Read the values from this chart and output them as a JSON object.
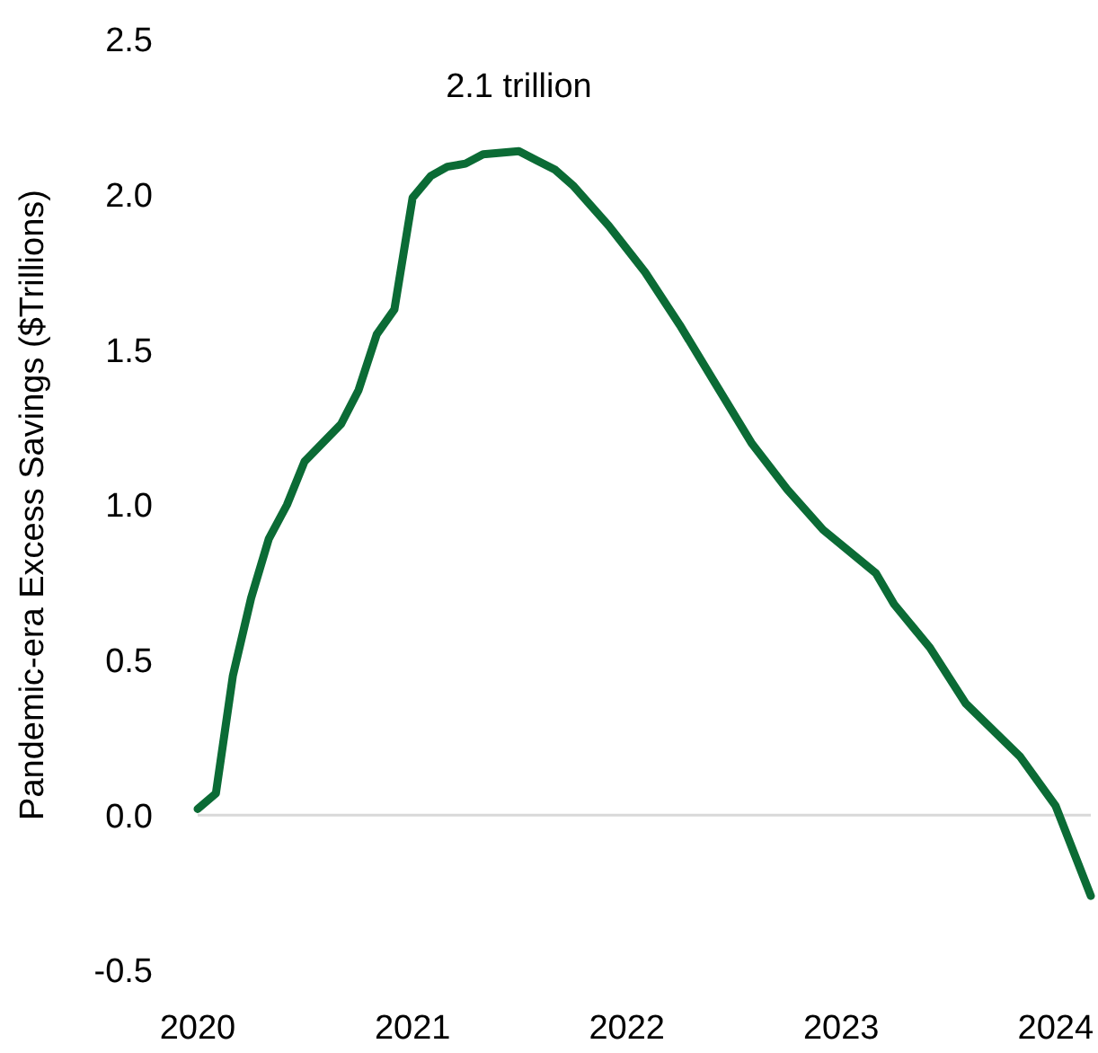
{
  "chart_data": {
    "type": "line",
    "ylabel": "Pandemic-era Excess Savings ($Trillions)",
    "x": [
      "2020-01",
      "2020-02",
      "2020-03",
      "2020-04",
      "2020-05",
      "2020-06",
      "2020-07",
      "2020-09",
      "2020-10",
      "2020-11",
      "2020-12",
      "2021-01",
      "2021-02",
      "2021-03",
      "2021-04",
      "2021-05",
      "2021-07",
      "2021-08",
      "2021-09",
      "2021-10",
      "2021-12",
      "2022-02",
      "2022-04",
      "2022-06",
      "2022-08",
      "2022-10",
      "2022-12",
      "2023-03",
      "2023-04",
      "2023-06",
      "2023-08",
      "2023-11",
      "2024-01",
      "2024-03"
    ],
    "series": [
      {
        "color": "#0b6b35",
        "values": [
          0.02,
          0.07,
          0.45,
          0.7,
          0.89,
          1.0,
          1.14,
          1.26,
          1.37,
          1.55,
          1.63,
          1.99,
          2.06,
          2.09,
          2.1,
          2.13,
          2.14,
          2.11,
          2.08,
          2.03,
          1.9,
          1.75,
          1.58,
          1.39,
          1.2,
          1.05,
          0.92,
          0.78,
          0.68,
          0.54,
          0.36,
          0.19,
          0.03,
          -0.26
        ]
      }
    ],
    "xlim": [
      "2020-01",
      "2024-03"
    ],
    "xticks": [
      "2020",
      "2021",
      "2022",
      "2023",
      "2024"
    ],
    "ylim": [
      -0.5,
      2.5
    ],
    "yticks": [
      {
        "value": -0.5,
        "label": "-0.5"
      },
      {
        "value": 0,
        "label": "0.0"
      },
      {
        "value": 0.5,
        "label": "0.5"
      },
      {
        "value": 1,
        "label": "1.0"
      },
      {
        "value": 1.5,
        "label": "1.5"
      },
      {
        "value": 2,
        "label": "2.0"
      },
      {
        "value": 2.5,
        "label": "2.5"
      }
    ],
    "ref_lines": [
      {
        "axis": "y",
        "value": 0,
        "color": "#d9d9d9"
      }
    ],
    "annotations": [
      {
        "text": "2.1 trillion",
        "x": "2021-07",
        "y": 2.14
      }
    ],
    "grid": false,
    "line_style": "solid",
    "marker": "none"
  }
}
